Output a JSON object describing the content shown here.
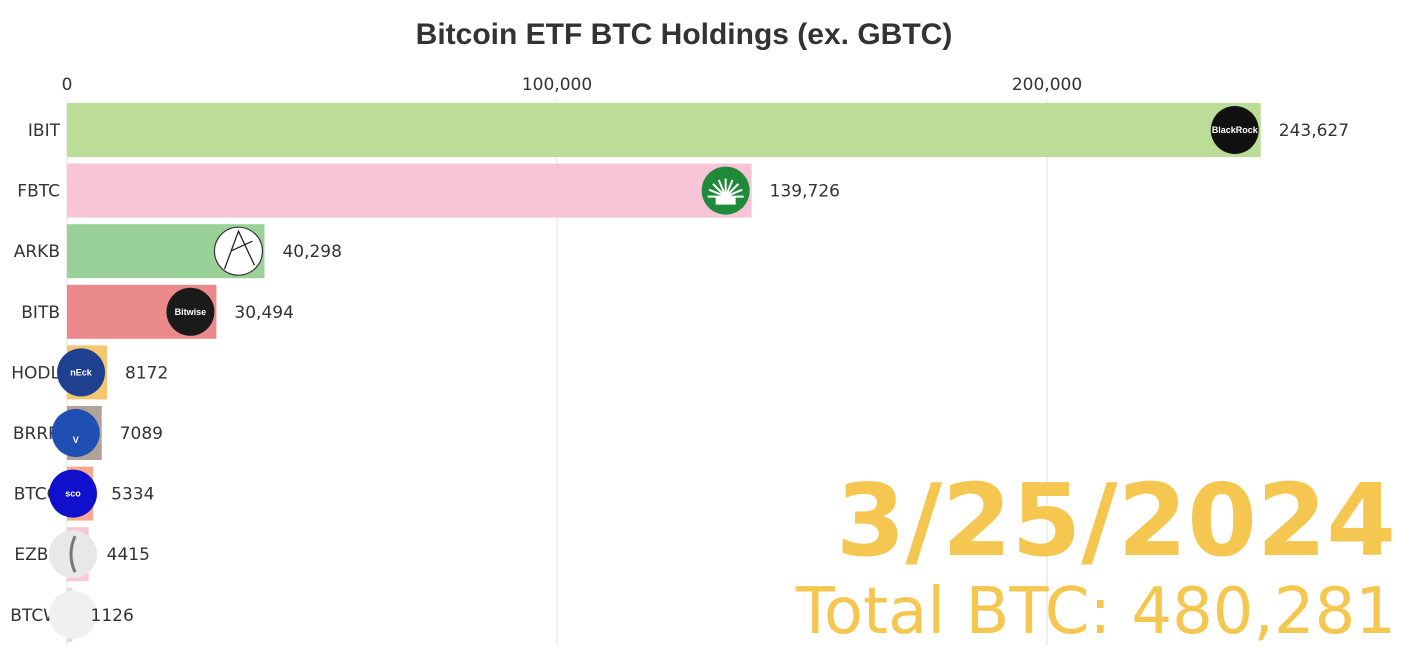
{
  "chart_data": {
    "type": "bar",
    "orientation": "horizontal",
    "title": "Bitcoin ETF BTC Holdings (ex. GBTC)",
    "xlim": [
      0,
      250000
    ],
    "xticks": [
      {
        "value": 0,
        "label": "0"
      },
      {
        "value": 100000,
        "label": "100,000"
      },
      {
        "value": 200000,
        "label": "200,000"
      }
    ],
    "grid": true,
    "categories": [
      "IBIT",
      "FBTC",
      "ARKB",
      "BITB",
      "HODL",
      "BRRR",
      "BTCO",
      "EZBC",
      "BTCW"
    ],
    "values": [
      243627,
      139726,
      40298,
      30494,
      8172,
      7089,
      5334,
      4415,
      1126
    ],
    "value_labels": [
      "243,627",
      "139,726",
      "40,298",
      "30,494",
      "8172",
      "7089",
      "5334",
      "4415",
      "1126"
    ],
    "colors": [
      "#bcdd98",
      "#f7c5d7",
      "#99d198",
      "#eb8a8c",
      "#f6c66e",
      "#b3a297",
      "#f7a98f",
      "#f8c8d6",
      "#d9dee8"
    ],
    "logos": [
      {
        "name": "blackrock-logo",
        "text": "BlackRock",
        "bg": "#111111"
      },
      {
        "name": "fidelity-logo",
        "text": "",
        "bg": "#1e8a3a"
      },
      {
        "name": "ark-logo",
        "text": "",
        "bg": "#ffffff"
      },
      {
        "name": "bitwise-logo",
        "text": "Bitwise",
        "bg": "#1a1a1a"
      },
      {
        "name": "vaneck-logo",
        "text": "nEck",
        "bg": "#1f3f8f"
      },
      {
        "name": "valkyrie-logo",
        "text": "V",
        "bg": "#1f4fb0"
      },
      {
        "name": "invesco-logo",
        "text": "sco",
        "bg": "#1010cc"
      },
      {
        "name": "franklin-logo",
        "text": "",
        "bg": "#e8e8e8"
      },
      {
        "name": "wisdomtree-logo",
        "text": "",
        "bg": "#f0f0f0"
      }
    ],
    "date_label": "3/25/2024",
    "total_label": "Total BTC: 480,281"
  }
}
